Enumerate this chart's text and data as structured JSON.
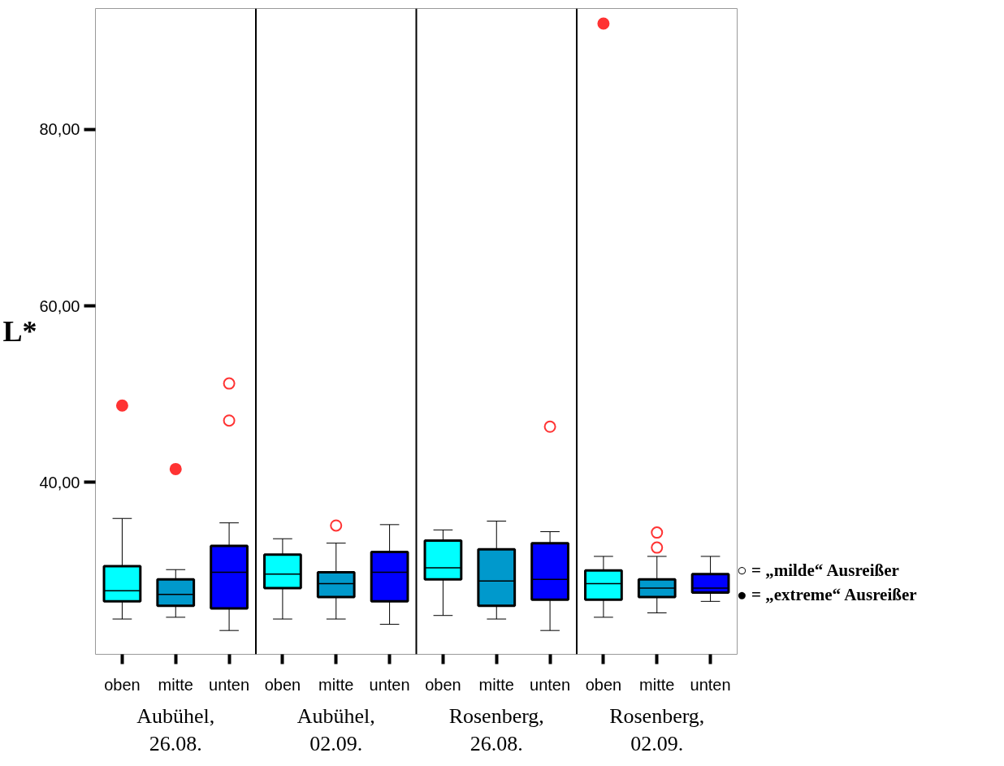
{
  "chart_data": {
    "type": "box",
    "ylabel": "L*",
    "categories": [
      "oben",
      "mitte",
      "unten",
      "oben",
      "mitte",
      "unten",
      "oben",
      "mitte",
      "unten",
      "oben",
      "mitte",
      "unten"
    ],
    "colors": [
      "#00ffff",
      "#0099cc",
      "#0000ff",
      "#00ffff",
      "#0099cc",
      "#0000ff",
      "#00ffff",
      "#0099cc",
      "#0000ff",
      "#00ffff",
      "#0099cc",
      "#0000ff"
    ],
    "boxes": [
      {
        "low": 24.5,
        "q1": 26.5,
        "median": 27.7,
        "q3": 30.5,
        "high": 35.9,
        "outliers": [
          48.7
        ]
      },
      {
        "low": 24.7,
        "q1": 26.0,
        "median": 27.3,
        "q3": 29.0,
        "high": 30.1,
        "outliers": [
          41.5
        ]
      },
      {
        "low": 23.2,
        "q1": 25.7,
        "median": 29.8,
        "q3": 32.8,
        "high": 35.4,
        "outliers": [
          51.2,
          47.0
        ]
      },
      {
        "low": 24.5,
        "q1": 28.0,
        "median": 29.6,
        "q3": 31.8,
        "high": 33.6
      },
      {
        "low": 24.5,
        "q1": 27.0,
        "median": 28.5,
        "q3": 29.8,
        "high": 33.1,
        "outliers": [
          35.1
        ]
      },
      {
        "low": 23.9,
        "q1": 26.5,
        "median": 29.8,
        "q3": 32.1,
        "high": 35.2
      },
      {
        "low": 24.9,
        "q1": 29.0,
        "median": 30.3,
        "q3": 33.4,
        "high": 34.6
      },
      {
        "low": 24.5,
        "q1": 26.0,
        "median": 28.8,
        "q3": 32.4,
        "high": 35.6
      },
      {
        "low": 23.2,
        "q1": 26.7,
        "median": 29.0,
        "q3": 33.1,
        "high": 34.4,
        "outliers": [
          46.3
        ]
      },
      {
        "low": 24.7,
        "q1": 26.7,
        "median": 28.5,
        "q3": 30.0,
        "high": 31.6,
        "outliers": [
          92.0
        ]
      },
      {
        "low": 25.2,
        "q1": 27.0,
        "median": 28.0,
        "q3": 29.0,
        "high": 31.6,
        "outliers": [
          34.3,
          32.6
        ]
      },
      {
        "low": 26.5,
        "q1": 27.5,
        "median": 28.0,
        "q3": 29.6,
        "high": 31.6
      }
    ],
    "ylim": [
      20.5,
      93.7
    ],
    "yticks": [
      {
        "value": 40,
        "label": "40,00"
      },
      {
        "value": 60,
        "label": "60,00"
      },
      {
        "value": 80,
        "label": "80,00"
      }
    ],
    "grid": false,
    "annotations": [
      "Aubühel,\n26.08.",
      "Aubühel,\n02.09.",
      "Rosenberg,\n26.08.",
      "Rosenberg,\n02.09.",
      "○ = „milde“ Ausreißer",
      "● = „extreme“ Ausreißer"
    ]
  }
}
